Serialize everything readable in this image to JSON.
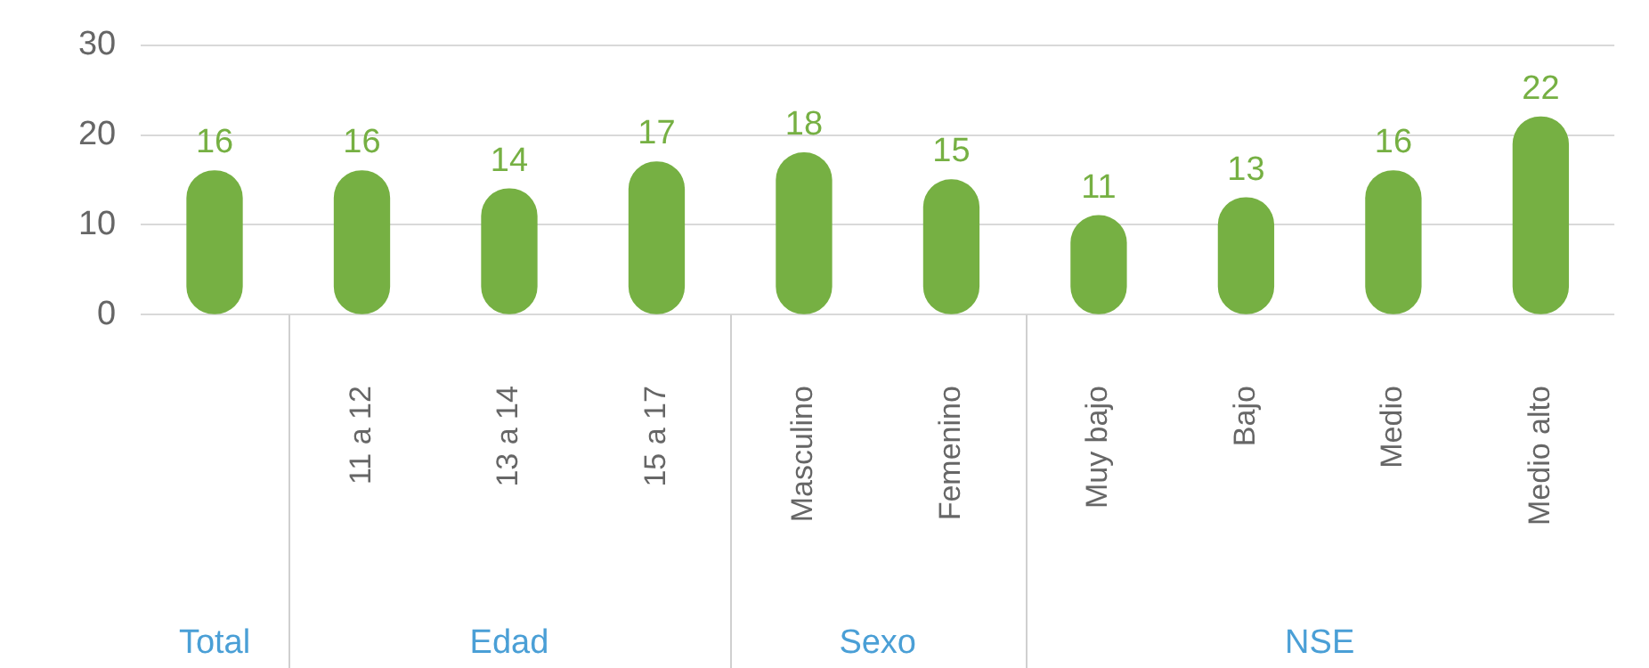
{
  "chart_data": {
    "type": "bar",
    "categories": [
      null,
      "11 a 12",
      "13 a 14",
      "15 a 17",
      "Masculino",
      "Femenino",
      "Muy bajo",
      "Bajo",
      "Medio",
      "Medio alto"
    ],
    "values": [
      16,
      16,
      14,
      17,
      18,
      15,
      11,
      13,
      16,
      22
    ],
    "color": "#76b043",
    "ylim": [
      0,
      30
    ],
    "yticks": [
      0,
      10,
      20,
      30
    ],
    "grid": "y",
    "data_labels": true,
    "legend": false,
    "annotations": [
      "Total",
      "Edad",
      "Sexo",
      "NSE"
    ]
  }
}
